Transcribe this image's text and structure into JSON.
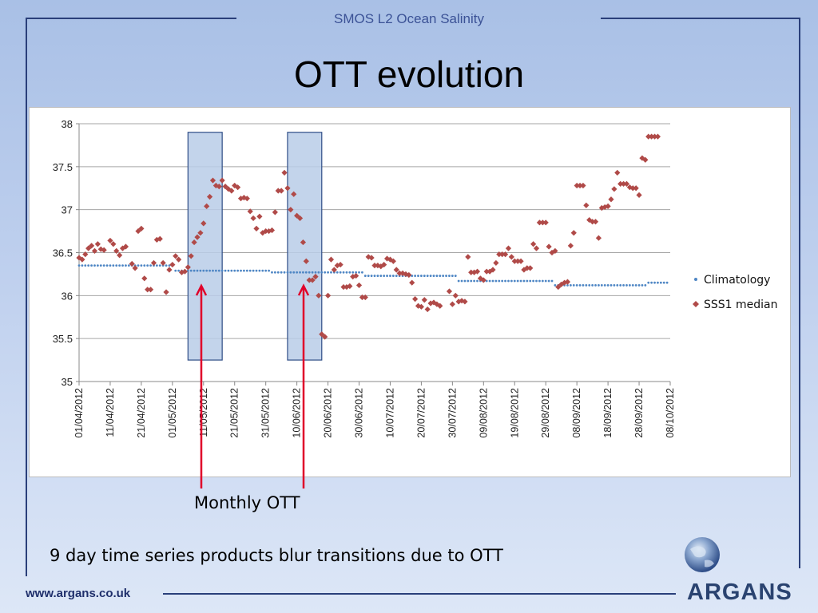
{
  "header": {
    "subtitle": "SMOS L2 Ocean Salinity"
  },
  "slide": {
    "title": "OTT evolution",
    "monthly_label": "Monthly OTT",
    "note": "9 day time series products blur transitions due to OTT"
  },
  "footer": {
    "url": "www.argans.co.uk",
    "brand": "ARGANS"
  },
  "colors": {
    "accent_dark": "#2a3f7a",
    "climatology": "#4e86c4",
    "sss1": "#b04a48",
    "highlight_box": "#b9cde8",
    "arrow": "#e0002a"
  },
  "chart_data": {
    "type": "scatter",
    "title": "",
    "xlabel": "",
    "ylabel": "",
    "ylim": [
      35,
      38
    ],
    "yticks": [
      "38",
      "37.5",
      "37",
      "36.5",
      "36",
      "35.5",
      "35"
    ],
    "x_tick_labels": [
      "01/04/2012",
      "11/04/2012",
      "21/04/2012",
      "01/05/2012",
      "11/05/2012",
      "21/05/2012",
      "31/05/2012",
      "10/06/2012",
      "20/06/2012",
      "30/06/2012",
      "10/07/2012",
      "20/07/2012",
      "30/07/2012",
      "09/08/2012",
      "19/08/2012",
      "29/08/2012",
      "08/09/2012",
      "18/09/2012",
      "28/09/2012",
      "08/10/2012"
    ],
    "grid": "horizontal",
    "legend_position": "right",
    "highlight_ranges_day_index": [
      [
        35,
        46
      ],
      [
        67,
        78
      ]
    ],
    "series": [
      {
        "name": "Climatology",
        "marker": "dot",
        "segments": [
          {
            "start": 0,
            "end": 30,
            "value": 36.35
          },
          {
            "start": 31,
            "end": 61,
            "value": 36.29
          },
          {
            "start": 62,
            "end": 91,
            "value": 36.27
          },
          {
            "start": 92,
            "end": 121,
            "value": 36.23
          },
          {
            "start": 122,
            "end": 152,
            "value": 36.17
          },
          {
            "start": 153,
            "end": 182,
            "value": 36.12
          },
          {
            "start": 183,
            "end": 189,
            "value": 36.15
          }
        ]
      },
      {
        "name": "SSS1 median",
        "marker": "diamond",
        "points": [
          [
            0,
            36.44
          ],
          [
            1,
            36.42
          ],
          [
            2,
            36.48
          ],
          [
            3,
            36.55
          ],
          [
            4,
            36.58
          ],
          [
            5,
            36.52
          ],
          [
            6,
            36.6
          ],
          [
            7,
            36.54
          ],
          [
            8,
            36.53
          ],
          [
            10,
            36.64
          ],
          [
            11,
            36.6
          ],
          [
            12,
            36.52
          ],
          [
            13,
            36.47
          ],
          [
            14,
            36.55
          ],
          [
            15,
            36.57
          ],
          [
            17,
            36.37
          ],
          [
            18,
            36.32
          ],
          [
            19,
            36.75
          ],
          [
            20,
            36.78
          ],
          [
            21,
            36.2
          ],
          [
            22,
            36.07
          ],
          [
            23,
            36.07
          ],
          [
            24,
            36.38
          ],
          [
            25,
            36.65
          ],
          [
            26,
            36.66
          ],
          [
            27,
            36.38
          ],
          [
            28,
            36.04
          ],
          [
            29,
            36.3
          ],
          [
            30,
            36.36
          ],
          [
            31,
            36.46
          ],
          [
            32,
            36.42
          ],
          [
            33,
            36.27
          ],
          [
            34,
            36.28
          ],
          [
            35,
            36.33
          ],
          [
            36,
            36.46
          ],
          [
            37,
            36.62
          ],
          [
            38,
            36.68
          ],
          [
            39,
            36.73
          ],
          [
            40,
            36.84
          ],
          [
            41,
            37.04
          ],
          [
            42,
            37.15
          ],
          [
            43,
            37.34
          ],
          [
            44,
            37.28
          ],
          [
            45,
            37.27
          ],
          [
            46,
            37.34
          ],
          [
            47,
            37.27
          ],
          [
            48,
            37.24
          ],
          [
            49,
            37.22
          ],
          [
            50,
            37.28
          ],
          [
            51,
            37.26
          ],
          [
            52,
            37.13
          ],
          [
            53,
            37.14
          ],
          [
            54,
            37.13
          ],
          [
            55,
            36.98
          ],
          [
            56,
            36.9
          ],
          [
            57,
            36.78
          ],
          [
            58,
            36.92
          ],
          [
            59,
            36.73
          ],
          [
            60,
            36.75
          ],
          [
            61,
            36.75
          ],
          [
            62,
            36.76
          ],
          [
            63,
            36.97
          ],
          [
            64,
            37.22
          ],
          [
            65,
            37.22
          ],
          [
            66,
            37.43
          ],
          [
            67,
            37.25
          ],
          [
            68,
            37.0
          ],
          [
            69,
            37.18
          ],
          [
            70,
            36.93
          ],
          [
            71,
            36.9
          ],
          [
            72,
            36.62
          ],
          [
            73,
            36.4
          ],
          [
            74,
            36.18
          ],
          [
            75,
            36.18
          ],
          [
            76,
            36.22
          ],
          [
            77,
            36.0
          ],
          [
            78,
            35.55
          ],
          [
            79,
            35.52
          ],
          [
            80,
            36.0
          ],
          [
            81,
            36.42
          ],
          [
            82,
            36.3
          ],
          [
            83,
            36.35
          ],
          [
            84,
            36.36
          ],
          [
            85,
            36.1
          ],
          [
            86,
            36.1
          ],
          [
            87,
            36.11
          ],
          [
            88,
            36.22
          ],
          [
            89,
            36.23
          ],
          [
            90,
            36.12
          ],
          [
            91,
            35.98
          ],
          [
            92,
            35.98
          ],
          [
            93,
            36.45
          ],
          [
            94,
            36.44
          ],
          [
            95,
            36.35
          ],
          [
            96,
            36.35
          ],
          [
            97,
            36.34
          ],
          [
            98,
            36.36
          ],
          [
            99,
            36.43
          ],
          [
            100,
            36.42
          ],
          [
            101,
            36.4
          ],
          [
            102,
            36.3
          ],
          [
            103,
            36.26
          ],
          [
            104,
            36.26
          ],
          [
            105,
            36.25
          ],
          [
            106,
            36.24
          ],
          [
            107,
            36.15
          ],
          [
            108,
            35.96
          ],
          [
            109,
            35.88
          ],
          [
            110,
            35.87
          ],
          [
            111,
            35.95
          ],
          [
            112,
            35.84
          ],
          [
            113,
            35.91
          ],
          [
            114,
            35.92
          ],
          [
            115,
            35.9
          ],
          [
            116,
            35.88
          ],
          [
            119,
            36.05
          ],
          [
            120,
            35.9
          ],
          [
            121,
            36.0
          ],
          [
            122,
            35.93
          ],
          [
            123,
            35.94
          ],
          [
            124,
            35.93
          ],
          [
            125,
            36.45
          ],
          [
            126,
            36.27
          ],
          [
            127,
            36.27
          ],
          [
            128,
            36.28
          ],
          [
            129,
            36.2
          ],
          [
            130,
            36.18
          ],
          [
            131,
            36.28
          ],
          [
            132,
            36.28
          ],
          [
            133,
            36.3
          ],
          [
            134,
            36.38
          ],
          [
            135,
            36.48
          ],
          [
            136,
            36.48
          ],
          [
            137,
            36.48
          ],
          [
            138,
            36.55
          ],
          [
            139,
            36.45
          ],
          [
            140,
            36.4
          ],
          [
            141,
            36.4
          ],
          [
            142,
            36.4
          ],
          [
            143,
            36.3
          ],
          [
            144,
            36.32
          ],
          [
            145,
            36.32
          ],
          [
            146,
            36.6
          ],
          [
            147,
            36.55
          ],
          [
            148,
            36.85
          ],
          [
            149,
            36.85
          ],
          [
            150,
            36.85
          ],
          [
            151,
            36.57
          ],
          [
            152,
            36.5
          ],
          [
            153,
            36.52
          ],
          [
            154,
            36.1
          ],
          [
            155,
            36.13
          ],
          [
            156,
            36.15
          ],
          [
            157,
            36.16
          ],
          [
            158,
            36.58
          ],
          [
            159,
            36.73
          ],
          [
            160,
            37.28
          ],
          [
            161,
            37.28
          ],
          [
            162,
            37.28
          ],
          [
            163,
            37.05
          ],
          [
            164,
            36.88
          ],
          [
            165,
            36.86
          ],
          [
            166,
            36.86
          ],
          [
            167,
            36.67
          ],
          [
            168,
            37.02
          ],
          [
            169,
            37.03
          ],
          [
            170,
            37.04
          ],
          [
            171,
            37.12
          ],
          [
            172,
            37.24
          ],
          [
            173,
            37.43
          ],
          [
            174,
            37.3
          ],
          [
            175,
            37.3
          ],
          [
            176,
            37.3
          ],
          [
            177,
            37.26
          ],
          [
            178,
            37.25
          ],
          [
            179,
            37.25
          ],
          [
            180,
            37.17
          ],
          [
            181,
            37.6
          ],
          [
            182,
            37.58
          ],
          [
            183,
            37.85
          ],
          [
            184,
            37.85
          ],
          [
            185,
            37.85
          ],
          [
            186,
            37.85
          ]
        ]
      }
    ]
  }
}
